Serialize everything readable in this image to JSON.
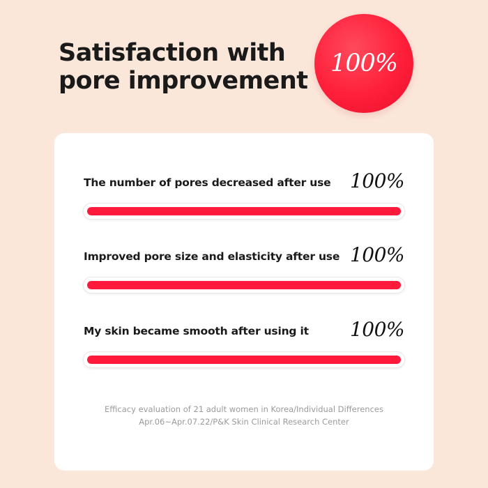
{
  "header": {
    "title_lines": [
      "Satisfaction with",
      "pore improvement"
    ],
    "badge_text": "100%"
  },
  "chart_data": {
    "type": "bar",
    "orientation": "horizontal",
    "categories": [
      "The number of pores decreased after use",
      "Improved pore size and elasticity after use",
      "My skin became smooth after using it"
    ],
    "values": [
      100,
      100,
      100
    ],
    "value_labels": [
      "100%",
      "100%",
      "100%"
    ],
    "unit": "%",
    "xlim": [
      0,
      100
    ],
    "grid": false,
    "legend": "none"
  },
  "footnote": {
    "line1": "Efficacy evaluation of 21 adult women in Korea/Individual Differences",
    "line2": "Apr.06~Apr.07.22/P&K Skin Clinical Research Center"
  },
  "colors": {
    "background": "#fbe7da",
    "accent": "#ff1a3c",
    "card": "#ffffff"
  }
}
